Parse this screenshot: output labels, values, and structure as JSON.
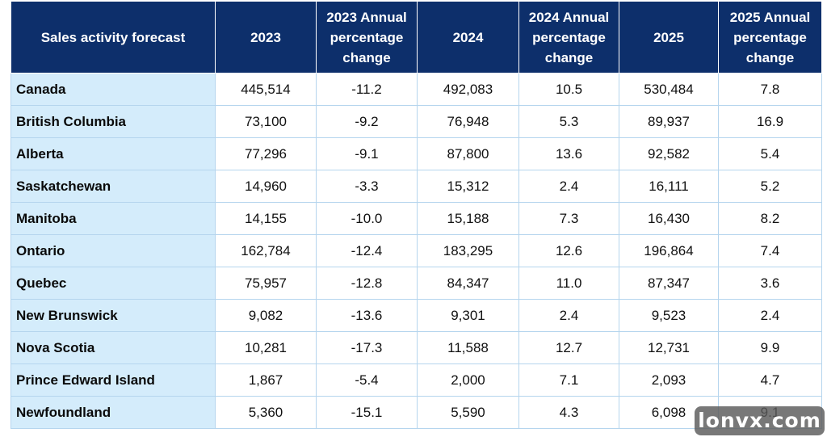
{
  "table": {
    "headers": [
      "Sales activity forecast",
      "2023",
      "2023 Annual percentage change",
      "2024",
      "2024 Annual percentage change",
      "2025",
      "2025 Annual percentage change"
    ],
    "rows": [
      [
        "Canada",
        "445,514",
        "-11.2",
        "492,083",
        "10.5",
        "530,484",
        "7.8"
      ],
      [
        "British Columbia",
        "73,100",
        "-9.2",
        "76,948",
        "5.3",
        "89,937",
        "16.9"
      ],
      [
        "Alberta",
        "77,296",
        "-9.1",
        "87,800",
        "13.6",
        "92,582",
        "5.4"
      ],
      [
        "Saskatchewan",
        "14,960",
        "-3.3",
        "15,312",
        "2.4",
        "16,111",
        "5.2"
      ],
      [
        "Manitoba",
        "14,155",
        "-10.0",
        "15,188",
        "7.3",
        "16,430",
        "8.2"
      ],
      [
        "Ontario",
        "162,784",
        "-12.4",
        "183,295",
        "12.6",
        "196,864",
        "7.4"
      ],
      [
        "Quebec",
        "75,957",
        "-12.8",
        "84,347",
        "11.0",
        "87,347",
        "3.6"
      ],
      [
        "New Brunswick",
        "9,082",
        "-13.6",
        "9,301",
        "2.4",
        "9,523",
        "2.4"
      ],
      [
        "Nova Scotia",
        "10,281",
        "-17.3",
        "11,588",
        "12.7",
        "12,731",
        "9.9"
      ],
      [
        "Prince Edward Island",
        "1,867",
        "-5.4",
        "2,000",
        "7.1",
        "2,093",
        "4.7"
      ],
      [
        "Newfoundland",
        "5,360",
        "-15.1",
        "5,590",
        "4.3",
        "6,098",
        "9.1"
      ]
    ]
  },
  "watermark": {
    "text": "lonvx.com"
  },
  "colors": {
    "header_bg": "#0d2f6b",
    "region_bg": "#d4ecfb",
    "grid": "#b5d5ee"
  }
}
